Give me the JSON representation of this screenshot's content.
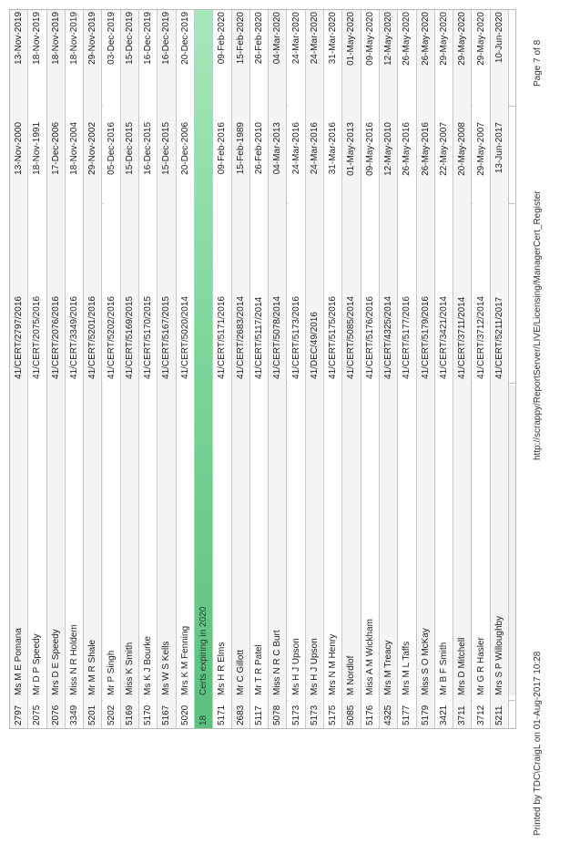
{
  "rows": [
    {
      "id": "2797",
      "name": "Ms M E Pomana",
      "cert": "41/CERT/2797/2016",
      "issued": "13-Nov-2000",
      "expires": "13-Nov-2019",
      "type": "data"
    },
    {
      "id": "2075",
      "name": "Mr D P Speedy",
      "cert": "41/CERT/2075/2016",
      "issued": "18-Nov-1991",
      "expires": "18-Nov-2019",
      "type": "data"
    },
    {
      "id": "2076",
      "name": "Mrs D E Speedy",
      "cert": "41/CERT/2076/2016",
      "issued": "17-Dec-2006",
      "expires": "18-Nov-2019",
      "type": "data"
    },
    {
      "id": "3349",
      "name": "Miss N R Holdem",
      "cert": "41/CERT/3349/2016",
      "issued": "18-Nov-2004",
      "expires": "18-Nov-2019",
      "type": "data"
    },
    {
      "id": "5201",
      "name": "Mr M R Shale",
      "cert": "41/CERT/5201/2016",
      "issued": "29-Nov-2002",
      "expires": "29-Nov-2019",
      "type": "data"
    },
    {
      "id": "5202",
      "name": "Mr P Singh",
      "cert": "41/CERT/5202/2016",
      "issued": "05-Dec-2016",
      "expires": "03-Dec-2019",
      "type": "data"
    },
    {
      "id": "5169",
      "name": "Miss K Smith",
      "cert": "41/CERT/5169/2015",
      "issued": "15-Dec-2015",
      "expires": "15-Dec-2019",
      "type": "data"
    },
    {
      "id": "5170",
      "name": "Ms K J Bourke",
      "cert": "41/CERT/5170/2015",
      "issued": "16-Dec-2015",
      "expires": "16-Dec-2019",
      "type": "data"
    },
    {
      "id": "5167",
      "name": "Ms W S Kells",
      "cert": "41/CERT/5167/2015",
      "issued": "15-Dec-2015",
      "expires": "16-Dec-2019",
      "type": "data"
    },
    {
      "id": "5020",
      "name": "Mrs K M Fenning",
      "cert": "41/CERT/5020/2014",
      "issued": "20-Dec-2006",
      "expires": "20-Dec-2019",
      "type": "data"
    },
    {
      "id": "18",
      "name": "Certs expiring in 2020",
      "cert": "",
      "issued": "",
      "expires": "",
      "type": "section"
    },
    {
      "id": "5171",
      "name": "Ms H R Elms",
      "cert": "41/CERT/5171/2016",
      "issued": "09-Feb-2016",
      "expires": "09-Feb-2020",
      "type": "data"
    },
    {
      "id": "2683",
      "name": "Mr C Gillott",
      "cert": "41/CERT/2683/2014",
      "issued": "15-Feb-1989",
      "expires": "15-Feb-2020",
      "type": "data"
    },
    {
      "id": "5117",
      "name": "Mr T R Patel",
      "cert": "41/CERT/5117/2014",
      "issued": "26-Feb-2010",
      "expires": "26-Feb-2020",
      "type": "data"
    },
    {
      "id": "5078",
      "name": "Miss N R C Burt",
      "cert": "41/CERT/5078/2014",
      "issued": "04-Mar-2013",
      "expires": "04-Mar-2020",
      "type": "data"
    },
    {
      "id": "5173",
      "name": "Ms H J Upson",
      "cert": "41/CERT/5173/2016",
      "issued": "24-Mar-2016",
      "expires": "24-Mar-2020",
      "type": "data"
    },
    {
      "id": "5173",
      "name": "Ms H J Upson",
      "cert": "41/DEC/49/2016",
      "issued": "24-Mar-2016",
      "expires": "24-Mar-2020",
      "type": "data"
    },
    {
      "id": "5175",
      "name": "Mrs N M Henry",
      "cert": "41/CERT/5175/2016",
      "issued": "31-Mar-2016",
      "expires": "31-Mar-2020",
      "type": "data"
    },
    {
      "id": "5085",
      "name": "M Nordlof",
      "cert": "41/CERT/5085/2014",
      "issued": "01-May-2013",
      "expires": "01-May-2020",
      "type": "data"
    },
    {
      "id": "5176",
      "name": "Miss A M Wickham",
      "cert": "41/CERT/5176/2016",
      "issued": "09-May-2016",
      "expires": "09-May-2020",
      "type": "data"
    },
    {
      "id": "4325",
      "name": "Mrs M Treacy",
      "cert": "41/CERT/4325/2014",
      "issued": "12-May-2010",
      "expires": "12-May-2020",
      "type": "data"
    },
    {
      "id": "5177",
      "name": "Mrs M L Taffs",
      "cert": "41/CERT/5177/2016",
      "issued": "26-May-2016",
      "expires": "26-May-2020",
      "type": "data"
    },
    {
      "id": "5179",
      "name": "Miss S O McKay",
      "cert": "41/CERT/5179/2016",
      "issued": "26-May-2016",
      "expires": "26-May-2020",
      "type": "data"
    },
    {
      "id": "3421",
      "name": "Mr B F Smith",
      "cert": "41/CERT/3421/2014",
      "issued": "22-May-2007",
      "expires": "29-May-2020",
      "type": "data"
    },
    {
      "id": "3711",
      "name": "Mrs D Mitchell",
      "cert": "41/CERT/3711/2014",
      "issued": "20-May-2008",
      "expires": "29-May-2020",
      "type": "data"
    },
    {
      "id": "3712",
      "name": "Mr G R Hasler",
      "cert": "41/CERT/3712/2014",
      "issued": "29-May-2007",
      "expires": "29-May-2020",
      "type": "data"
    },
    {
      "id": "5211",
      "name": "Mrs S P Willoughby",
      "cert": "41/CERT/5211/2017",
      "issued": "13-Jun-2017",
      "expires": "10-Jun-2020",
      "type": "data"
    }
  ],
  "footer": {
    "printed": "Printed by TDC\\CraigL on 01-Aug-2017 10:28",
    "url": "http://scrappy/ReportServer/LIVE/Licensing/ManagerCert_Register",
    "page": "Page 7 of 8"
  }
}
